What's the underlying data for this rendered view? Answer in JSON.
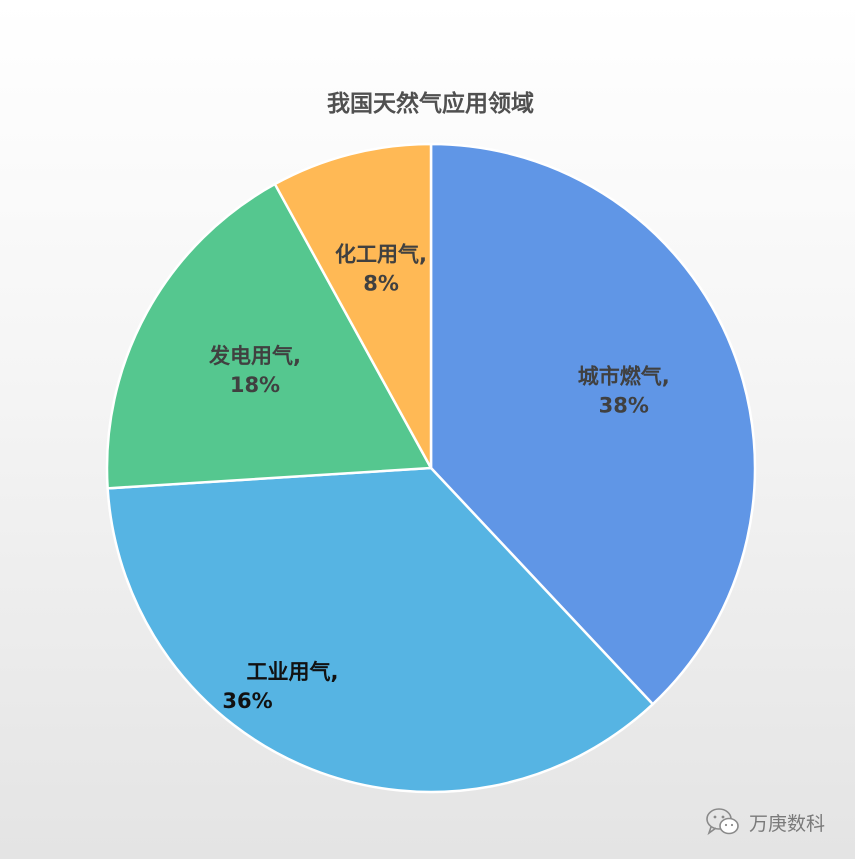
{
  "chart_data": {
    "type": "pie",
    "title": "我国天然气应用领域",
    "slices": [
      {
        "label": "城市燃气,",
        "value": 38,
        "percent_label": "38%",
        "color": "#6096e6",
        "label_color": "#404040"
      },
      {
        "label": "工业用气,",
        "value": 36,
        "percent_label": "36%",
        "color": "#56b4e3",
        "label_color": "#111111"
      },
      {
        "label": "发电用气,",
        "value": 18,
        "percent_label": "18%",
        "color": "#55c78f",
        "label_color": "#404040"
      },
      {
        "label": "化工用气,",
        "value": 8,
        "percent_label": "8%",
        "color": "#ffb955",
        "label_color": "#404040"
      }
    ],
    "start": "12 o'clock",
    "direction": "clockwise",
    "legend": "none"
  },
  "watermark": {
    "text": "万庚数科",
    "icon": "wechat-icon"
  }
}
